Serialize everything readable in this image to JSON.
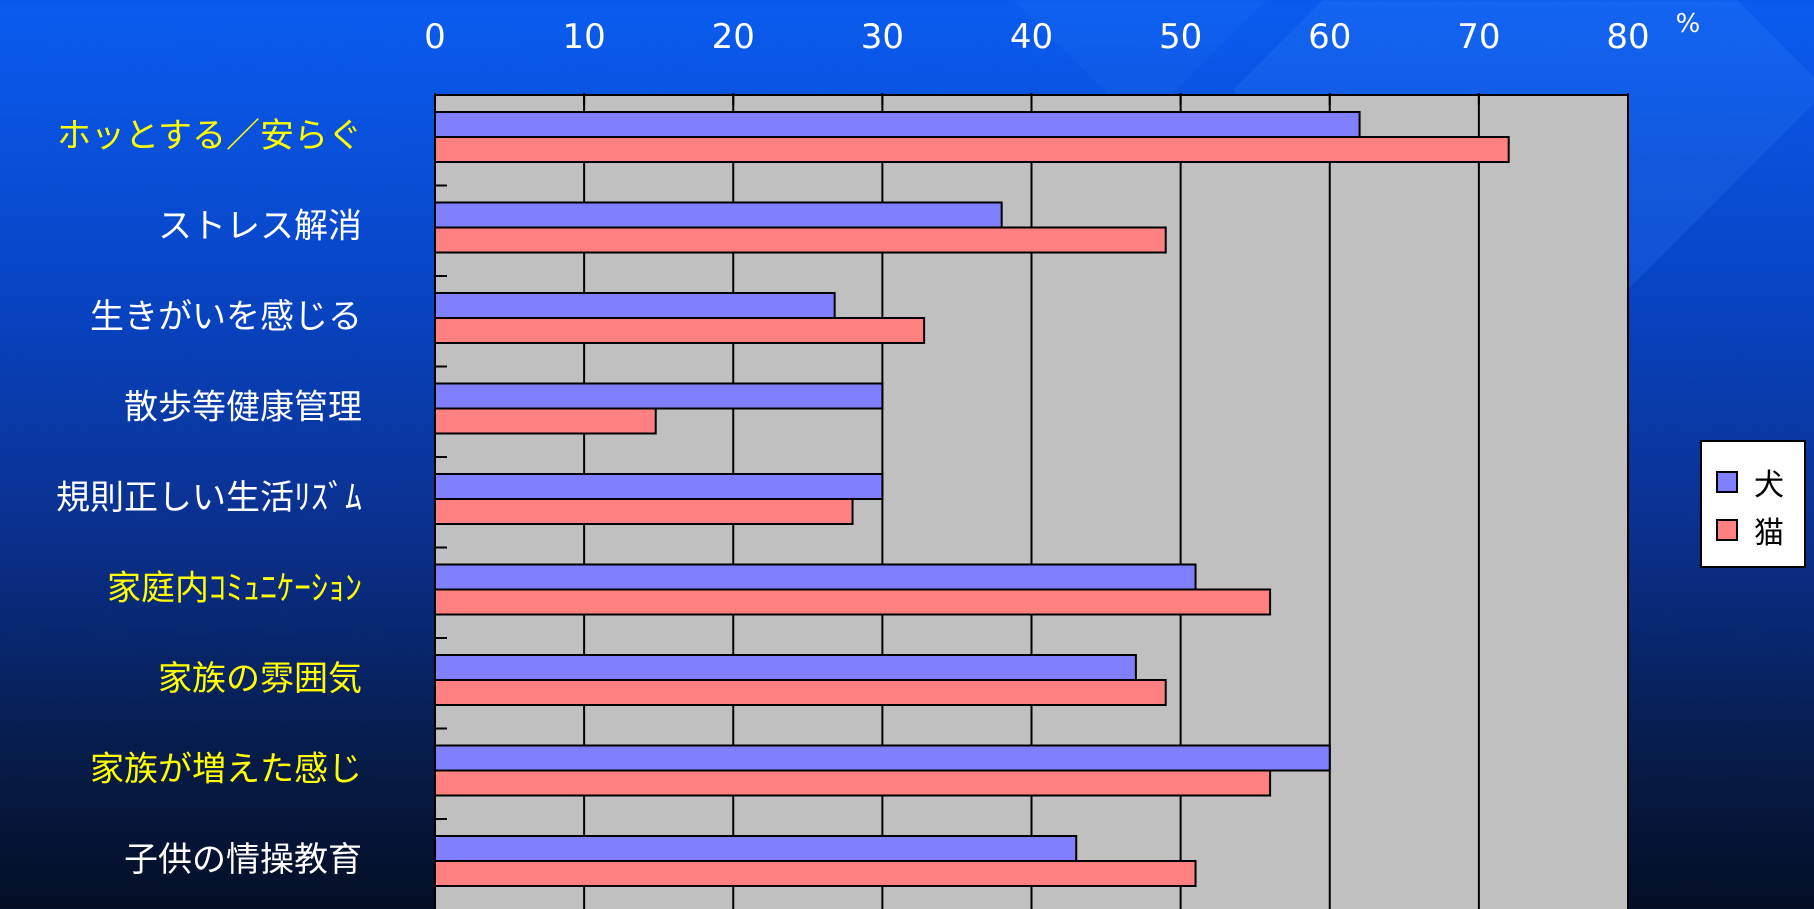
{
  "colors": {
    "dog": "#8080ff",
    "cat": "#ff8080",
    "plot_bg": "#c0c0c0",
    "label_white": "#ffffff",
    "label_yellow": "#ffff00"
  },
  "chart_data": {
    "type": "bar",
    "orientation": "horizontal",
    "unit_label": "%",
    "xlim": [
      0,
      80
    ],
    "xticks": [
      "0",
      "10",
      "20",
      "30",
      "40",
      "50",
      "60",
      "70",
      "80"
    ],
    "grid": true,
    "legend_position": "right",
    "categories": [
      {
        "label": "ホッとする／安らぐ",
        "color": "yellow"
      },
      {
        "label": "ストレス解消",
        "color": "white"
      },
      {
        "label": "生きがいを感じる",
        "color": "white"
      },
      {
        "label": "散歩等健康管理",
        "color": "white"
      },
      {
        "label": "規則正しい生活ﾘｽﾞﾑ",
        "color": "white"
      },
      {
        "label": "家庭内ｺﾐｭﾆｹｰｼｮﾝ",
        "color": "yellow"
      },
      {
        "label": "家族の雰囲気",
        "color": "yellow"
      },
      {
        "label": "家族が増えた感じ",
        "color": "yellow"
      },
      {
        "label": "子供の情操教育",
        "color": "white"
      }
    ],
    "series": [
      {
        "name": "犬",
        "color": "#8080ff",
        "values": [
          62,
          38,
          26.8,
          30,
          30,
          51,
          47,
          60,
          43
        ]
      },
      {
        "name": "猫",
        "color": "#ff8080",
        "values": [
          72,
          49,
          32.8,
          14.8,
          28,
          56,
          49,
          56,
          51
        ]
      }
    ]
  }
}
